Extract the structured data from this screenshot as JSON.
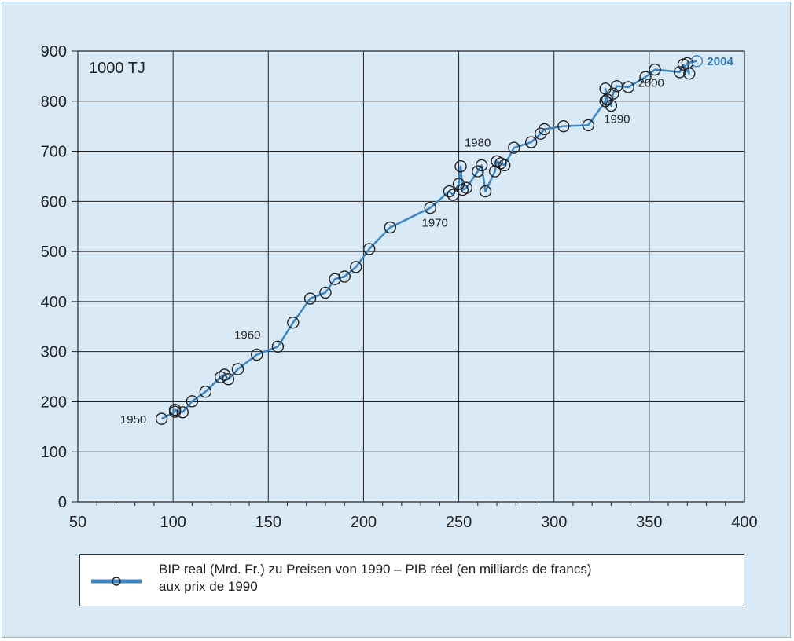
{
  "chart_data": {
    "type": "line",
    "unit_label": "1000 TJ",
    "xlim": [
      50,
      400
    ],
    "ylim": [
      0,
      900
    ],
    "x_ticks": [
      50,
      100,
      150,
      200,
      250,
      300,
      350,
      400
    ],
    "y_ticks": [
      0,
      100,
      200,
      300,
      400,
      500,
      600,
      700,
      800,
      900
    ],
    "grid": true,
    "legend_position": "bottom",
    "colors": {
      "line": "#3a86c8",
      "marker_stroke": "#222222",
      "grid": "#222222",
      "background": "#d9e9f6"
    },
    "series": [
      {
        "name": "BIP real (Mrd. Fr.) zu Preisen von 1990 – PIB réel (en milliards de francs) aux prix de 1990",
        "x": [
          94,
          101,
          101,
          105,
          110,
          117,
          125,
          127,
          129,
          134,
          144,
          155,
          163,
          172,
          180,
          185,
          190,
          196,
          203,
          214,
          235,
          245,
          247,
          250,
          251,
          252,
          254,
          260,
          262,
          264,
          269,
          270,
          272,
          274,
          279,
          288,
          293,
          295,
          305,
          318,
          327,
          327,
          328,
          330,
          331,
          333,
          339,
          348,
          353,
          366,
          368,
          371,
          370,
          375
        ],
        "y": [
          166,
          180,
          184,
          179,
          201,
          220,
          249,
          254,
          245,
          265,
          294,
          310,
          358,
          406,
          418,
          445,
          450,
          469,
          505,
          548,
          587,
          620,
          613,
          635,
          670,
          623,
          627,
          660,
          672,
          620,
          660,
          680,
          676,
          672,
          707,
          718,
          735,
          744,
          750,
          752,
          800,
          825,
          803,
          791,
          815,
          830,
          828,
          848,
          863,
          858,
          873,
          855,
          876,
          880
        ]
      }
    ],
    "annotations": [
      {
        "text": "1950",
        "x": 94,
        "y": 166
      },
      {
        "text": "1960",
        "x": 144,
        "y": 294
      },
      {
        "text": "1970",
        "x": 235,
        "y": 587
      },
      {
        "text": "1980",
        "x": 262,
        "y": 672
      },
      {
        "text": "1990",
        "x": 331,
        "y": 791
      },
      {
        "text": "2000",
        "x": 353,
        "y": 863
      },
      {
        "text": "2004",
        "x": 375,
        "y": 880
      }
    ]
  },
  "legend": {
    "line1": "BIP real (Mrd. Fr.) zu Preisen von 1990 – PIB réel (en milliards de francs)",
    "line2": "aux prix de 1990"
  }
}
